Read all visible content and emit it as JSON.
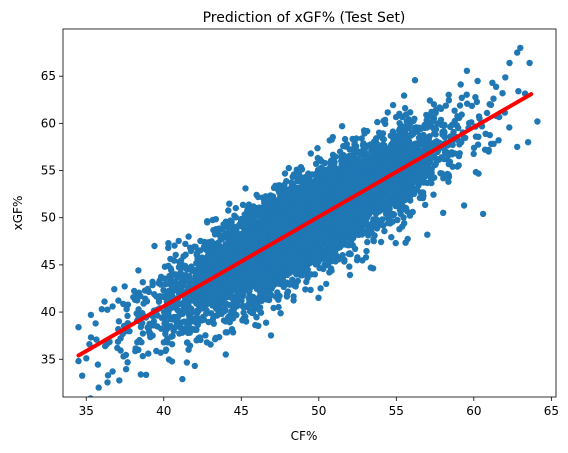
{
  "chart_data": {
    "type": "scatter",
    "title": "Prediction of xGF% (Test Set)",
    "xlabel": "CF%",
    "ylabel": "xGF%",
    "xlim": [
      33.5,
      65.3
    ],
    "ylim": [
      31.0,
      70.0
    ],
    "xticks": [
      35,
      40,
      45,
      50,
      55,
      60,
      65
    ],
    "yticks": [
      35,
      40,
      45,
      50,
      55,
      60,
      65
    ],
    "grid": false,
    "colors": {
      "points": "#1f77b4",
      "fit_line": "#ff0000"
    },
    "series": [
      {
        "kind": "points",
        "cloud": {
          "x_range": [
            34.5,
            63.7
          ],
          "fit_slope": 0.95,
          "fit_intercept": 2.6,
          "residual_sd": 2.5,
          "count": 6000
        },
        "outliers": [
          {
            "x": 34.5,
            "y": 38.4
          },
          {
            "x": 34.5,
            "y": 34.8
          },
          {
            "x": 35.2,
            "y": 36.6
          },
          {
            "x": 35.0,
            "y": 35.1
          },
          {
            "x": 35.3,
            "y": 39.7
          },
          {
            "x": 35.6,
            "y": 38.8
          },
          {
            "x": 35.8,
            "y": 32.0
          },
          {
            "x": 36.0,
            "y": 40.3
          },
          {
            "x": 36.4,
            "y": 33.3
          },
          {
            "x": 36.7,
            "y": 33.7
          },
          {
            "x": 36.7,
            "y": 40.6
          },
          {
            "x": 37.0,
            "y": 36.2
          },
          {
            "x": 37.4,
            "y": 35.3
          },
          {
            "x": 37.6,
            "y": 40.3
          },
          {
            "x": 38.7,
            "y": 40.9
          },
          {
            "x": 39.0,
            "y": 35.6
          },
          {
            "x": 39.4,
            "y": 47.0
          },
          {
            "x": 39.8,
            "y": 35.7
          },
          {
            "x": 40.3,
            "y": 47.3
          },
          {
            "x": 40.0,
            "y": 36.8
          },
          {
            "x": 41.2,
            "y": 32.9
          },
          {
            "x": 41.6,
            "y": 48.0
          },
          {
            "x": 42.0,
            "y": 34.3
          },
          {
            "x": 42.8,
            "y": 49.5
          },
          {
            "x": 44.0,
            "y": 35.5
          },
          {
            "x": 57.0,
            "y": 48.2
          },
          {
            "x": 60.6,
            "y": 50.4
          },
          {
            "x": 61.2,
            "y": 64.3
          },
          {
            "x": 62.3,
            "y": 66.4
          },
          {
            "x": 62.8,
            "y": 67.5
          },
          {
            "x": 63.0,
            "y": 68.0
          },
          {
            "x": 63.6,
            "y": 66.4
          },
          {
            "x": 63.5,
            "y": 58.0
          },
          {
            "x": 64.1,
            "y": 60.2
          },
          {
            "x": 62.8,
            "y": 57.5
          },
          {
            "x": 61.6,
            "y": 58.2
          }
        ]
      },
      {
        "kind": "line",
        "points": [
          {
            "x": 34.5,
            "y": 35.4
          },
          {
            "x": 63.7,
            "y": 63.1
          }
        ]
      }
    ]
  }
}
